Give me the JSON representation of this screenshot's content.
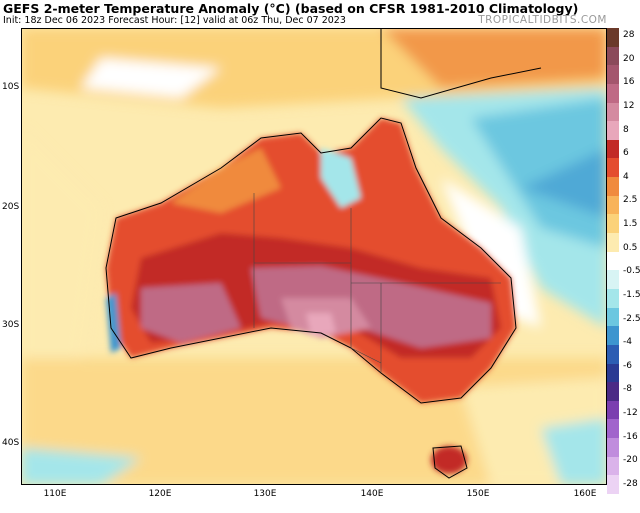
{
  "header": {
    "title": "GEFS 2-meter Temperature Anomaly (°C) (based on CFSR 1981-2010 Climatology)",
    "subtitle": "Init: 18z Dec 06 2023   Forecast Hour: [12]   valid at 06z Thu, Dec 07 2023",
    "brand": "TROPICALTIDBITS.COM"
  },
  "map": {
    "region": "Australia",
    "latitude_labels": [
      "10S",
      "20S",
      "30S",
      "40S"
    ],
    "longitude_labels": [
      "110E",
      "120E",
      "130E",
      "140E",
      "150E",
      "160E"
    ]
  },
  "colorbar": {
    "labels": [
      "28",
      "20",
      "16",
      "12",
      "8",
      "6",
      "4",
      "2.5",
      "1.5",
      "0.5",
      "-0.5",
      "-1.5",
      "-2.5",
      "-4",
      "-6",
      "-8",
      "-12",
      "-16",
      "-20",
      "-28"
    ],
    "colors": [
      "#6b3a2a",
      "#8b4a5a",
      "#a4566d",
      "#bf6a85",
      "#d48aa0",
      "#e8a7bb",
      "#c22a26",
      "#e44d2f",
      "#f08a3e",
      "#f8b35a",
      "#fbd27a",
      "#fdebb0",
      "#ffffff",
      "#d8f4f4",
      "#a4e6ea",
      "#6cc7e0",
      "#3d95cf",
      "#2c5db3",
      "#2a3a93",
      "#4b2b86",
      "#7b3fb0",
      "#a164cc",
      "#c08ddd",
      "#dab3ea",
      "#ecd3f4"
    ]
  }
}
